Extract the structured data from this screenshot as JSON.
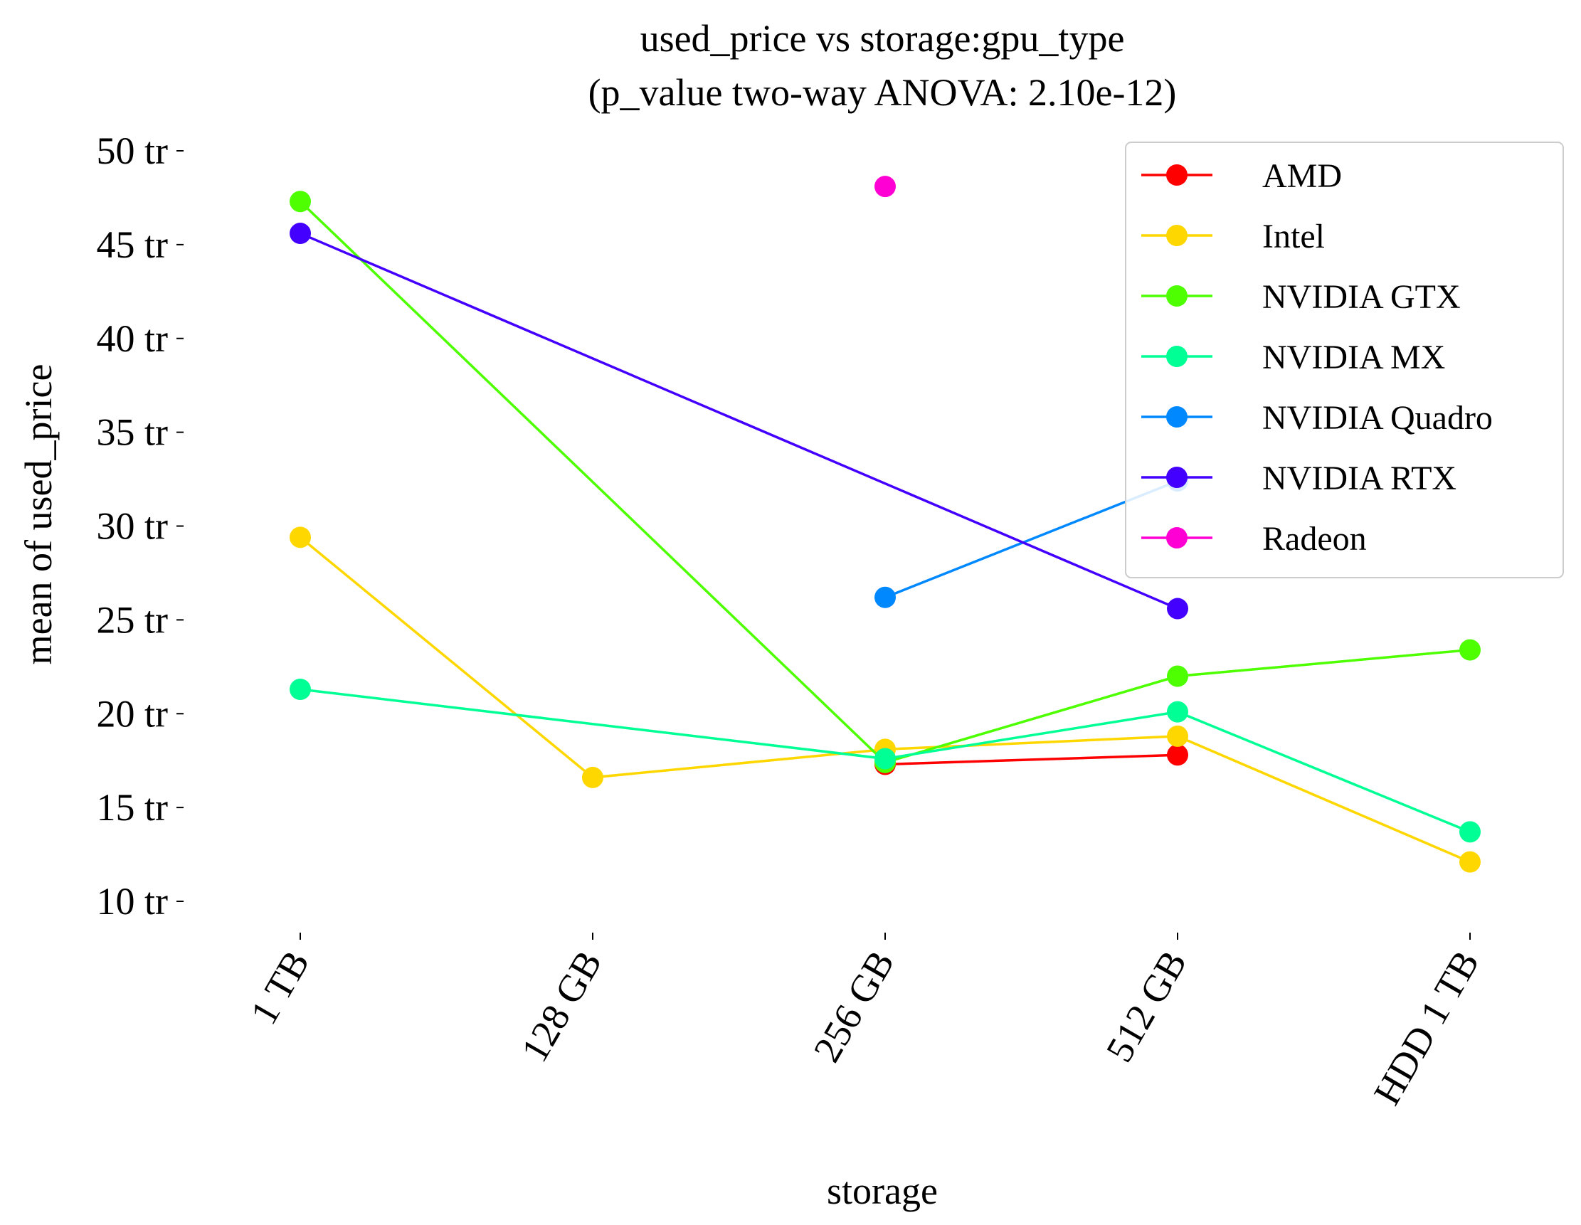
{
  "chart_data": {
    "type": "line",
    "title": "used_price vs storage:gpu_type",
    "subtitle": "(p_value two-way ANOVA: 2.10e-12)",
    "xlabel": "storage",
    "ylabel": "mean of used_price",
    "categories": [
      "1 TB",
      "128 GB",
      "256 GB",
      "512 GB",
      "HDD 1 TB"
    ],
    "y_ticks": [
      10,
      15,
      20,
      25,
      30,
      35,
      40,
      45,
      50
    ],
    "y_tick_labels": [
      "10 tr",
      "15 tr",
      "20 tr",
      "25 tr",
      "30 tr",
      "35 tr",
      "40 tr",
      "45 tr",
      "50 tr"
    ],
    "ylim": [
      8.5,
      51.5
    ],
    "grid": false,
    "legend_position": "top-right",
    "series": [
      {
        "name": "AMD",
        "color": "#ff0000",
        "values": [
          null,
          null,
          17.3,
          17.8,
          null
        ]
      },
      {
        "name": "Intel",
        "color": "#ffd700",
        "values": [
          29.4,
          16.6,
          18.1,
          18.8,
          12.1
        ]
      },
      {
        "name": "NVIDIA GTX",
        "color": "#4dff00",
        "values": [
          47.3,
          null,
          17.4,
          22.0,
          23.4
        ]
      },
      {
        "name": "NVIDIA MX",
        "color": "#00ff95",
        "values": [
          21.3,
          null,
          17.6,
          20.1,
          13.7
        ]
      },
      {
        "name": "NVIDIA Quadro",
        "color": "#0088ff",
        "values": [
          null,
          null,
          26.2,
          32.4,
          null
        ]
      },
      {
        "name": "NVIDIA RTX",
        "color": "#4400ff",
        "values": [
          45.6,
          null,
          null,
          25.6,
          null
        ]
      },
      {
        "name": "Radeon",
        "color": "#ff00d4",
        "values": [
          null,
          null,
          48.1,
          null,
          null
        ]
      }
    ]
  }
}
